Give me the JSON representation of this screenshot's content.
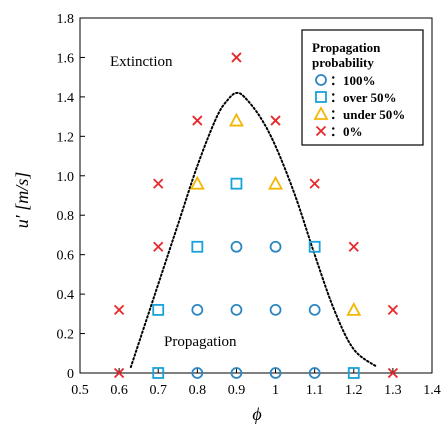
{
  "chart_data": {
    "type": "scatter",
    "xlabel": "ϕ",
    "ylabel": "u′ [m/s]",
    "xlim": [
      0.5,
      1.4
    ],
    "ylim": [
      0,
      1.8
    ],
    "xticks": [
      "0.5",
      "0.6",
      "0.7",
      "0.8",
      "0.9",
      "1",
      "1.1",
      "1.2",
      "1.3",
      "1.4"
    ],
    "yticks": [
      "0",
      "0.2",
      "0.4",
      "0.6",
      "0.8",
      "1.0",
      "1.2",
      "1.4",
      "1.6",
      "1.8"
    ],
    "grid": false,
    "annotations": [
      {
        "text": "Extinction",
        "x": 0.66,
        "y": 1.6
      },
      {
        "text": "Propagation",
        "x": 0.75,
        "y": 0.2
      }
    ],
    "legend": {
      "title": "Propagation probability",
      "placement": "top-right",
      "entries": [
        "：100%",
        "：over 50%",
        "：under  50%",
        "：0%"
      ]
    },
    "colors": {
      "circle": "#2E86C1",
      "square": "#17A2D8",
      "triangle": "#F2B705",
      "cross": "#E8282B"
    },
    "series": [
      {
        "name": "100%",
        "marker": "circle",
        "points": [
          [
            0.8,
            0.0
          ],
          [
            0.9,
            0.0
          ],
          [
            1.0,
            0.0
          ],
          [
            1.1,
            0.0
          ],
          [
            0.8,
            0.32
          ],
          [
            0.9,
            0.32
          ],
          [
            1.0,
            0.32
          ],
          [
            1.1,
            0.32
          ],
          [
            0.9,
            0.64
          ],
          [
            1.0,
            0.64
          ]
        ]
      },
      {
        "name": "over 50%",
        "marker": "square",
        "points": [
          [
            0.7,
            0.0
          ],
          [
            1.2,
            0.0
          ],
          [
            0.7,
            0.32
          ],
          [
            0.8,
            0.64
          ],
          [
            1.1,
            0.64
          ],
          [
            0.9,
            0.96
          ]
        ]
      },
      {
        "name": "under  50%",
        "marker": "triangle",
        "points": [
          [
            1.2,
            0.32
          ],
          [
            0.8,
            0.96
          ],
          [
            1.0,
            0.96
          ],
          [
            0.9,
            1.28
          ]
        ]
      },
      {
        "name": "0%",
        "marker": "cross",
        "points": [
          [
            0.6,
            0.0
          ],
          [
            1.3,
            0.0
          ],
          [
            0.6,
            0.32
          ],
          [
            1.3,
            0.32
          ],
          [
            0.7,
            0.64
          ],
          [
            1.2,
            0.64
          ],
          [
            0.7,
            0.96
          ],
          [
            1.1,
            0.96
          ],
          [
            0.8,
            1.28
          ],
          [
            1.0,
            1.28
          ],
          [
            0.9,
            1.6
          ]
        ]
      }
    ],
    "boundary_curve": {
      "style": "dotted",
      "points": [
        [
          0.63,
          0.03
        ],
        [
          0.7,
          0.45
        ],
        [
          0.75,
          0.75
        ],
        [
          0.8,
          1.05
        ],
        [
          0.85,
          1.3
        ],
        [
          0.88,
          1.39
        ],
        [
          0.9,
          1.42
        ],
        [
          0.92,
          1.4
        ],
        [
          0.96,
          1.3
        ],
        [
          1.0,
          1.15
        ],
        [
          1.05,
          0.9
        ],
        [
          1.1,
          0.6
        ],
        [
          1.15,
          0.32
        ],
        [
          1.2,
          0.12
        ],
        [
          1.26,
          0.03
        ]
      ]
    }
  }
}
